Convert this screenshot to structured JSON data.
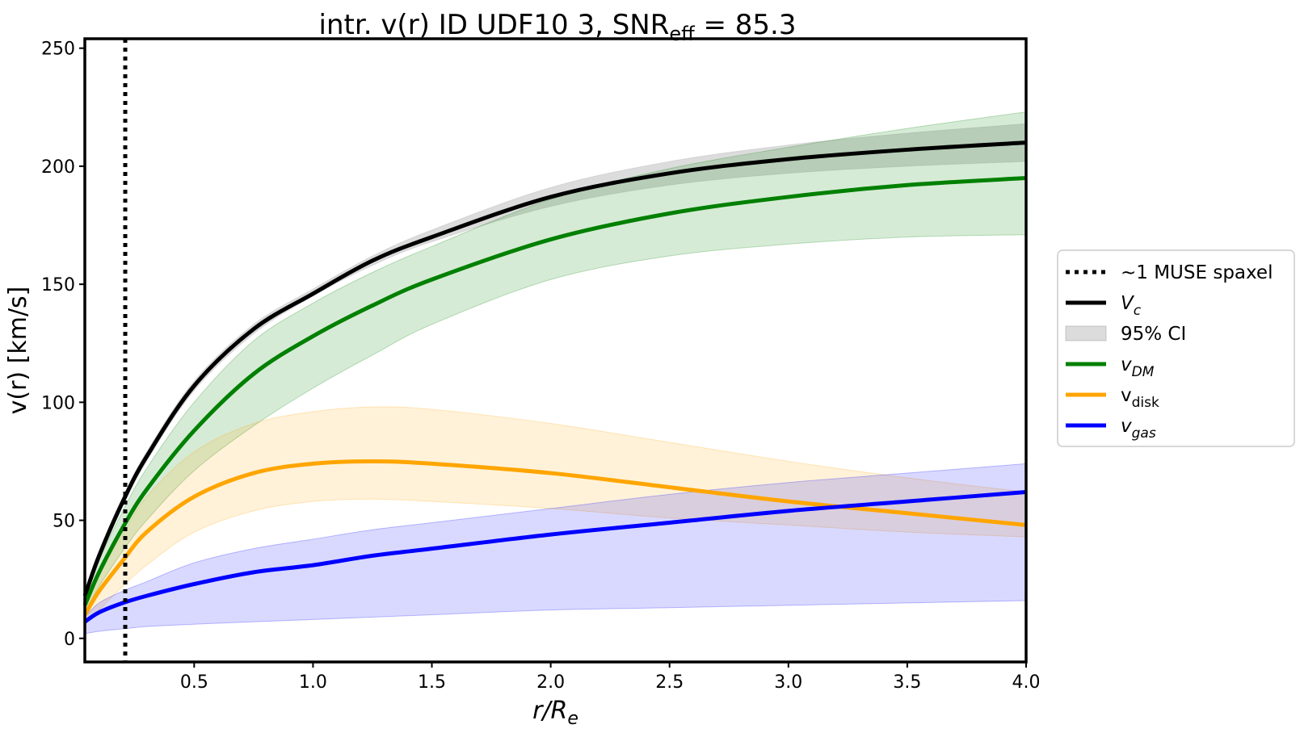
{
  "chart_data": {
    "type": "line",
    "title": {
      "prefix": "intr. v(r) ID UDF10 3, SNR",
      "subscript": "eff",
      "suffix": " = 85.3"
    },
    "xlabel": {
      "main": "r/R",
      "subscript": "e"
    },
    "ylabel": "v(r) [km/s]",
    "xlim": [
      0.04,
      4.0
    ],
    "ylim": [
      -10,
      254
    ],
    "xticks": [
      0.5,
      1.0,
      1.5,
      2.0,
      2.5,
      3.0,
      3.5,
      4.0
    ],
    "xtick_labels": [
      "0.5",
      "1.0",
      "1.5",
      "2.0",
      "2.5",
      "3.0",
      "3.5",
      "4.0"
    ],
    "yticks": [
      0,
      50,
      100,
      150,
      200,
      250
    ],
    "ytick_labels": [
      "0",
      "50",
      "100",
      "150",
      "200",
      "250"
    ],
    "grid": false,
    "legend_position": "outside-right",
    "vline": {
      "x": 0.21,
      "label": "~1 MUSE spaxel",
      "style": "dotted",
      "color": "#000000"
    },
    "x": [
      0.04,
      0.1,
      0.2,
      0.3,
      0.5,
      0.75,
      1.0,
      1.25,
      1.5,
      2.0,
      2.5,
      3.0,
      3.5,
      4.0
    ],
    "series": [
      {
        "key": "vc",
        "name": "V",
        "sub": "c",
        "italic": true,
        "color": "#000000",
        "values": [
          18,
          35,
          58,
          77,
          107,
          131,
          146,
          160,
          170,
          187,
          197,
          203,
          207,
          210
        ],
        "band": {
          "name": "95% CI",
          "color": "#9a9a9a",
          "opacity": 0.35,
          "lower": [
            16,
            33,
            56,
            75,
            105,
            129,
            145,
            158,
            168,
            183,
            192,
            197,
            200,
            202
          ],
          "upper": [
            20,
            37,
            60,
            79,
            109,
            133,
            148,
            162,
            173,
            191,
            202,
            209,
            214,
            218
          ]
        }
      },
      {
        "key": "vdm",
        "name": "v",
        "sub": "DM",
        "italic": true,
        "color": "#008000",
        "values": [
          14,
          28,
          47,
          63,
          88,
          112,
          128,
          141,
          152,
          169,
          180,
          187,
          192,
          195
        ],
        "band": {
          "color": "#008000",
          "opacity": 0.16,
          "lower": [
            11,
            22,
            37,
            50,
            71,
            90,
            106,
            120,
            133,
            152,
            162,
            167,
            170,
            171
          ],
          "upper": [
            17,
            33,
            54,
            72,
            100,
            126,
            142,
            155,
            166,
            186,
            199,
            208,
            216,
            223
          ]
        }
      },
      {
        "key": "vdisk",
        "name": "v",
        "sub": "disk",
        "italic": false,
        "color": "#ffa500",
        "values": [
          10,
          20,
          33,
          45,
          60,
          70,
          74,
          75,
          74,
          70,
          64,
          58,
          53,
          48
        ],
        "band": {
          "color": "#ffa500",
          "opacity": 0.15,
          "lower": [
            6,
            12,
            22,
            31,
            45,
            54,
            58,
            59,
            58,
            55,
            51,
            48,
            45,
            43
          ],
          "upper": [
            14,
            28,
            44,
            60,
            79,
            91,
            96,
            98,
            97,
            91,
            83,
            75,
            68,
            62
          ]
        }
      },
      {
        "key": "vgas",
        "name": "v",
        "sub": "gas",
        "italic": true,
        "color": "#0000ff",
        "values": [
          7,
          11,
          15,
          18,
          23,
          28,
          31,
          35,
          38,
          44,
          49,
          54,
          58,
          62
        ],
        "band": {
          "color": "#0000ff",
          "opacity": 0.15,
          "lower": [
            2,
            3,
            4,
            5,
            6,
            7,
            8,
            9,
            10,
            12,
            13,
            14,
            15,
            16
          ],
          "upper": [
            9,
            15,
            20,
            24,
            32,
            38,
            42,
            46,
            49,
            55,
            61,
            66,
            70,
            74
          ]
        }
      }
    ],
    "legend_order": [
      "vline",
      "vc",
      "band:vc",
      "vdm",
      "vdisk",
      "vgas"
    ]
  }
}
